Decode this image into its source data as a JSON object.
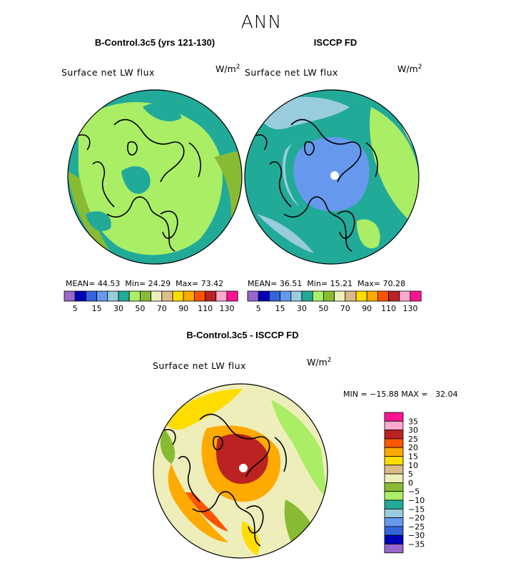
{
  "chart_data": [
    {
      "type": "heatmap",
      "title": "B-Control.3c5 (yrs 121-130)",
      "variable": "Surface net LW flux",
      "units": "W/m",
      "units_sup": "2",
      "stats": {
        "mean_label": "MEAN=",
        "mean": "44.53",
        "min_label": "Min=",
        "min": "24.29",
        "max_label": "Max=",
        "max": "73.42"
      },
      "colorbar": {
        "colors": [
          "#9966cc",
          "#0000bb",
          "#3366dd",
          "#6699ee",
          "#99ccdd",
          "#22aa99",
          "#aaee66",
          "#88bb33",
          "#eeeebb",
          "#ddbb88",
          "#ffdd00",
          "#ffaa00",
          "#ff5500",
          "#bb2222",
          "#ffaacc",
          "#ff1493"
        ],
        "tick_labels": [
          "5",
          "15",
          "30",
          "50",
          "70",
          "90",
          "110",
          "130"
        ]
      }
    },
    {
      "type": "heatmap",
      "title": "ISCCP FD",
      "variable": "Surface net LW flux",
      "units": "W/m",
      "units_sup": "2",
      "stats": {
        "mean_label": "MEAN=",
        "mean": "36.51",
        "min_label": "Min=",
        "min": "15.21",
        "max_label": "Max=",
        "max": "70.28"
      },
      "colorbar": {
        "colors": [
          "#9966cc",
          "#0000bb",
          "#3366dd",
          "#6699ee",
          "#99ccdd",
          "#22aa99",
          "#aaee66",
          "#88bb33",
          "#eeeebb",
          "#ddbb88",
          "#ffdd00",
          "#ffaa00",
          "#ff5500",
          "#bb2222",
          "#ffaacc",
          "#ff1493"
        ],
        "tick_labels": [
          "5",
          "15",
          "30",
          "50",
          "70",
          "90",
          "110",
          "130"
        ]
      }
    },
    {
      "type": "heatmap",
      "title": "B-Control.3c5 - ISCCP FD",
      "variable": "Surface net LW flux",
      "units": "W/m",
      "units_sup": "2",
      "stats_line": "MIN = −15.88 MAX =   32.04",
      "colorbar": {
        "colors": [
          "#ff1493",
          "#ffaacc",
          "#bb2222",
          "#ff5500",
          "#ffaa00",
          "#ffdd00",
          "#ddbb88",
          "#eeeebb",
          "#88bb33",
          "#aaee66",
          "#22aa99",
          "#99ccdd",
          "#6699ee",
          "#3366dd",
          "#0000bb",
          "#9966cc"
        ],
        "tick_labels": [
          "35",
          "30",
          "25",
          "20",
          "15",
          "10",
          "5",
          "0",
          "−5",
          "−10",
          "−15",
          "−20",
          "−25",
          "−30",
          "−35"
        ]
      }
    }
  ],
  "page": {
    "main_title": "ANN"
  }
}
